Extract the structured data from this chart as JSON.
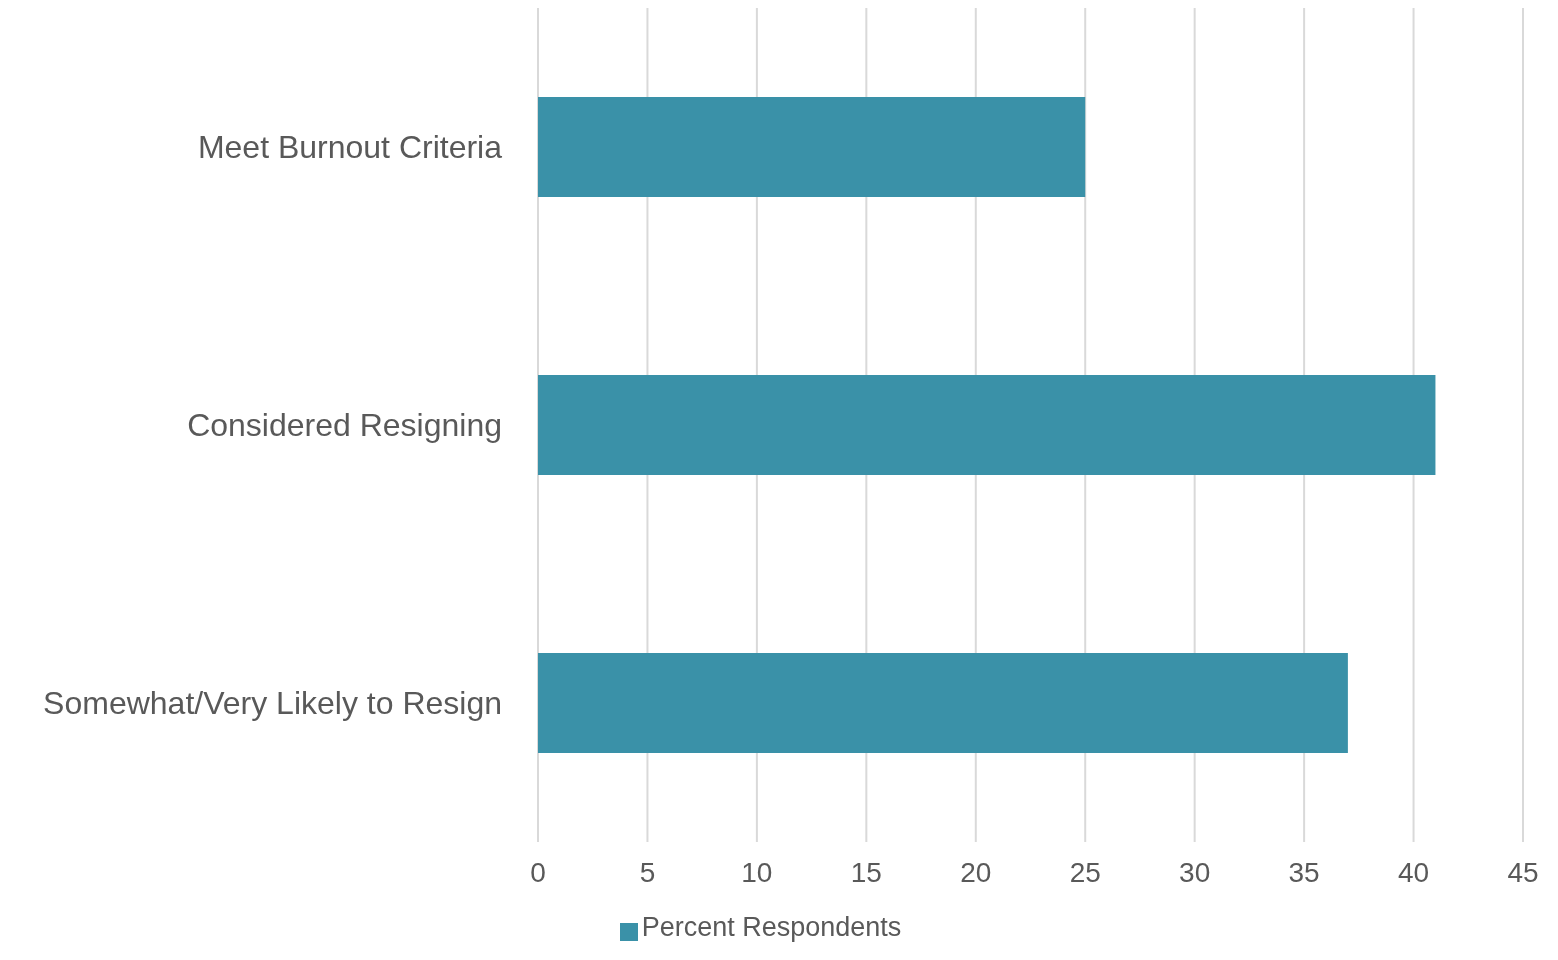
{
  "chart_data": {
    "type": "bar",
    "orientation": "horizontal",
    "categories": [
      "Meet Burnout Criteria",
      "Considered Resigning",
      "Somewhat/Very Likely to Resign"
    ],
    "series": [
      {
        "name": "Percent Respondents",
        "color": "#3a91a8",
        "values": [
          25,
          41,
          37
        ]
      }
    ],
    "xlim": [
      0,
      45
    ],
    "xticks": [
      0,
      5,
      10,
      15,
      20,
      25,
      30,
      35,
      40,
      45
    ],
    "grid": "x",
    "legend": "bottom"
  }
}
